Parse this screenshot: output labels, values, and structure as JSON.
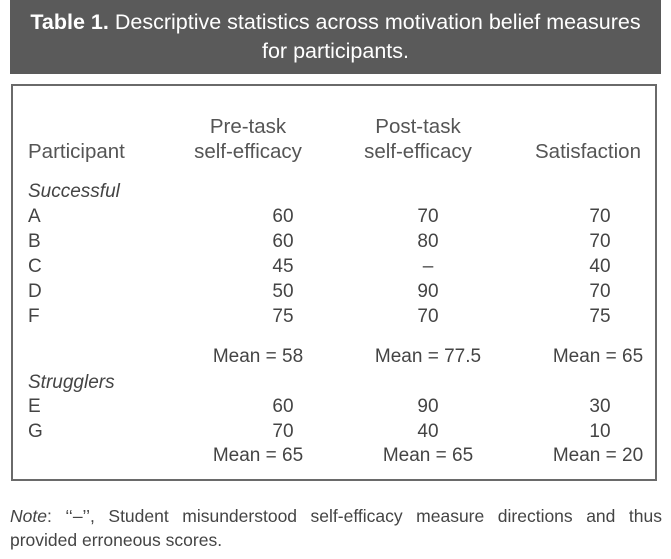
{
  "title": {
    "label": "Table 1.",
    "text_line1": "Descriptive statistics across motivation belief measures",
    "text_line2": "for participants."
  },
  "table": {
    "headers": {
      "participant": "Participant",
      "pre_task_line1": "Pre-task",
      "pre_task_line2": "self-efficacy",
      "post_task_line1": "Post-task",
      "post_task_line2": "self-efficacy",
      "satisfaction": "Satisfaction"
    },
    "groups": [
      {
        "name": "Successful",
        "rows": [
          {
            "participant": "A",
            "pre": "60",
            "post": "70",
            "satisfaction": "70"
          },
          {
            "participant": "B",
            "pre": "60",
            "post": "80",
            "satisfaction": "70"
          },
          {
            "participant": "C",
            "pre": "45",
            "post": "–",
            "satisfaction": "40"
          },
          {
            "participant": "D",
            "pre": "50",
            "post": "90",
            "satisfaction": "70"
          },
          {
            "participant": "F",
            "pre": "75",
            "post": "70",
            "satisfaction": "75"
          }
        ],
        "means": {
          "pre": "Mean = 58",
          "post": "Mean = 77.5",
          "satisfaction": "Mean = 65"
        }
      },
      {
        "name": "Strugglers",
        "rows": [
          {
            "participant": "E",
            "pre": "60",
            "post": "90",
            "satisfaction": "30"
          },
          {
            "participant": "G",
            "pre": "70",
            "post": "40",
            "satisfaction": "10"
          }
        ],
        "means": {
          "pre": "Mean = 65",
          "post": "Mean = 65",
          "satisfaction": "Mean = 20"
        }
      }
    ]
  },
  "note": {
    "label": "Note",
    "text": ": ‘‘–’’, Student misunderstood self-efficacy measure directions and thus provided erroneous scores."
  }
}
